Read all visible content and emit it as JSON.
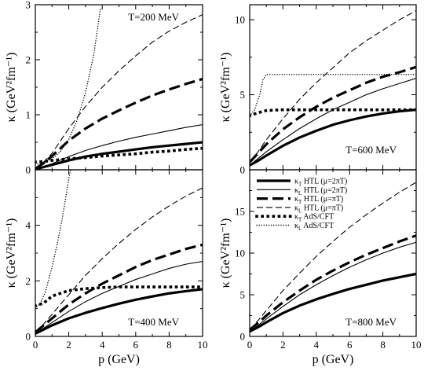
{
  "chart_data": [
    {
      "type": "line",
      "panel": "top-left",
      "annotation": "T=200 MeV",
      "xlabel": "",
      "ylabel": "κ (GeV²fm⁻¹)",
      "xlim": [
        0,
        10
      ],
      "ylim": [
        0,
        3
      ],
      "xticks": [
        0,
        2,
        4,
        6,
        8,
        10
      ],
      "xtick_labels": [],
      "yticks": [
        0,
        1,
        2,
        3
      ],
      "series": [
        {
          "style": "thick-solid",
          "x": [
            0,
            0.5,
            1,
            2,
            3,
            4,
            5,
            6,
            7,
            8,
            9,
            10
          ],
          "y": [
            0.01,
            0.05,
            0.09,
            0.17,
            0.24,
            0.29,
            0.33,
            0.37,
            0.41,
            0.44,
            0.47,
            0.5
          ]
        },
        {
          "style": "thin-solid",
          "x": [
            0,
            0.5,
            1,
            2,
            3,
            4,
            5,
            6,
            7,
            8,
            9,
            10
          ],
          "y": [
            0.01,
            0.06,
            0.11,
            0.24,
            0.35,
            0.44,
            0.52,
            0.59,
            0.65,
            0.71,
            0.77,
            0.82
          ]
        },
        {
          "style": "thick-dash",
          "x": [
            0,
            0.5,
            1,
            2,
            3,
            4,
            5,
            6,
            7,
            8,
            9,
            10
          ],
          "y": [
            0.02,
            0.12,
            0.25,
            0.53,
            0.75,
            0.93,
            1.08,
            1.22,
            1.35,
            1.46,
            1.56,
            1.65
          ]
        },
        {
          "style": "thin-dash",
          "x": [
            0,
            0.5,
            1,
            2,
            3,
            4,
            5,
            6,
            7,
            8,
            9,
            10
          ],
          "y": [
            0.02,
            0.14,
            0.3,
            0.75,
            1.15,
            1.5,
            1.8,
            2.07,
            2.32,
            2.52,
            2.68,
            2.82
          ]
        },
        {
          "style": "thick-dot",
          "x": [
            0,
            0.5,
            1,
            2,
            3,
            4,
            5,
            6,
            7,
            8,
            9,
            10
          ],
          "y": [
            0.14,
            0.15,
            0.17,
            0.2,
            0.22,
            0.25,
            0.27,
            0.29,
            0.32,
            0.34,
            0.37,
            0.39
          ]
        },
        {
          "style": "thin-dot",
          "x": [
            0,
            0.5,
            1,
            1.5,
            2,
            2.5,
            3,
            3.5,
            3.9
          ],
          "y": [
            0.1,
            0.13,
            0.2,
            0.33,
            0.55,
            0.9,
            1.4,
            2.1,
            2.95
          ]
        }
      ]
    },
    {
      "type": "line",
      "panel": "top-right",
      "annotation": "T=600 MeV",
      "xlabel": "",
      "ylabel": "κ (GeV²fm⁻¹)",
      "xlim": [
        0,
        10
      ],
      "ylim": [
        0,
        11
      ],
      "xticks": [
        0,
        2,
        4,
        6,
        8,
        10
      ],
      "xtick_labels": [],
      "yticks": [
        0,
        5,
        10
      ],
      "series": [
        {
          "style": "thick-solid",
          "x": [
            0,
            0.5,
            1,
            2,
            3,
            4,
            5,
            6,
            7,
            8,
            9,
            10
          ],
          "y": [
            0.3,
            0.6,
            0.95,
            1.6,
            2.15,
            2.6,
            3.0,
            3.3,
            3.55,
            3.75,
            3.9,
            4.0
          ]
        },
        {
          "style": "thin-solid",
          "x": [
            0,
            0.5,
            1,
            2,
            3,
            4,
            5,
            6,
            7,
            8,
            9,
            10
          ],
          "y": [
            0.3,
            0.75,
            1.2,
            2.0,
            2.75,
            3.4,
            4.0,
            4.5,
            5.0,
            5.4,
            5.75,
            6.1
          ]
        },
        {
          "style": "thick-dash",
          "x": [
            0,
            0.5,
            1,
            2,
            3,
            4,
            5,
            6,
            7,
            8,
            9,
            10
          ],
          "y": [
            0.5,
            1.1,
            1.7,
            2.7,
            3.5,
            4.2,
            4.8,
            5.3,
            5.8,
            6.2,
            6.5,
            6.85
          ]
        },
        {
          "style": "thin-dash",
          "x": [
            0,
            0.5,
            1,
            2,
            3,
            4,
            5,
            6,
            7,
            8,
            9,
            10
          ],
          "y": [
            0.5,
            1.2,
            2.0,
            3.4,
            4.7,
            5.8,
            6.8,
            7.8,
            8.6,
            9.3,
            10.0,
            10.6
          ]
        },
        {
          "style": "thick-dot",
          "x": [
            0,
            0.5,
            1,
            2,
            3,
            4,
            5,
            6,
            7,
            8,
            9,
            10
          ],
          "y": [
            3.6,
            3.8,
            3.95,
            4.0,
            4.0,
            4.0,
            4.0,
            4.0,
            4.0,
            4.0,
            4.0,
            4.0
          ]
        },
        {
          "style": "thin-dot",
          "x": [
            0,
            0.3,
            0.6,
            0.8,
            1.0,
            2,
            3,
            4,
            5,
            6,
            7,
            8,
            9,
            10
          ],
          "y": [
            3.6,
            4.0,
            5.0,
            6.0,
            6.35,
            6.35,
            6.35,
            6.35,
            6.35,
            6.35,
            6.35,
            6.35,
            6.35,
            6.35
          ]
        }
      ]
    },
    {
      "type": "line",
      "panel": "bottom-left",
      "annotation": "T=400 MeV",
      "xlabel": "p (GeV)",
      "ylabel": "κ (GeV²fm⁻¹)",
      "xlim": [
        0,
        10
      ],
      "ylim": [
        0,
        6
      ],
      "xticks": [
        0,
        2,
        4,
        6,
        8,
        10
      ],
      "xtick_labels": [
        "0",
        "2",
        "4",
        "6",
        "8",
        "10"
      ],
      "yticks": [
        0,
        2,
        4
      ],
      "series": [
        {
          "style": "thick-solid",
          "x": [
            0,
            0.5,
            1,
            2,
            3,
            4,
            5,
            6,
            7,
            8,
            9,
            10
          ],
          "y": [
            0.1,
            0.25,
            0.4,
            0.65,
            0.85,
            1.02,
            1.18,
            1.32,
            1.44,
            1.55,
            1.63,
            1.7
          ]
        },
        {
          "style": "thin-solid",
          "x": [
            0,
            0.5,
            1,
            2,
            3,
            4,
            5,
            6,
            7,
            8,
            9,
            10
          ],
          "y": [
            0.1,
            0.3,
            0.5,
            0.9,
            1.25,
            1.55,
            1.8,
            2.05,
            2.25,
            2.45,
            2.6,
            2.7
          ]
        },
        {
          "style": "thick-dash",
          "x": [
            0,
            0.5,
            1,
            2,
            3,
            4,
            5,
            6,
            7,
            8,
            9,
            10
          ],
          "y": [
            0.15,
            0.4,
            0.65,
            1.15,
            1.55,
            1.9,
            2.2,
            2.5,
            2.75,
            2.95,
            3.15,
            3.3
          ]
        },
        {
          "style": "thin-dash",
          "x": [
            0,
            0.5,
            1,
            2,
            3,
            4,
            5,
            6,
            7,
            8,
            9,
            10
          ],
          "y": [
            0.15,
            0.45,
            0.8,
            1.5,
            2.2,
            2.8,
            3.35,
            3.85,
            4.3,
            4.7,
            5.05,
            5.35
          ]
        },
        {
          "style": "thick-dot",
          "x": [
            0,
            0.5,
            1,
            2,
            3,
            4,
            5,
            6,
            7,
            8,
            9,
            10
          ],
          "y": [
            1.1,
            1.2,
            1.45,
            1.65,
            1.72,
            1.76,
            1.78,
            1.78,
            1.78,
            1.78,
            1.78,
            1.78
          ]
        },
        {
          "style": "thin-dot",
          "x": [
            0,
            0.3,
            0.6,
            1.0,
            1.3,
            1.6,
            1.9,
            2.1
          ],
          "y": [
            1.0,
            1.2,
            1.6,
            2.5,
            3.3,
            4.2,
            5.3,
            6.0
          ]
        }
      ]
    },
    {
      "type": "line",
      "panel": "bottom-right",
      "annotation": "T=800 MeV",
      "xlabel": "p (GeV)",
      "ylabel": "κ (GeV²fm⁻¹)",
      "xlim": [
        0,
        10
      ],
      "ylim": [
        0,
        20
      ],
      "xticks": [
        0,
        2,
        4,
        6,
        8,
        10
      ],
      "xtick_labels": [
        "0",
        "2",
        "4",
        "6",
        "8",
        "10"
      ],
      "yticks": [
        0,
        5,
        10,
        15
      ],
      "series": [
        {
          "style": "thick-solid",
          "x": [
            0,
            0.5,
            1,
            2,
            3,
            4,
            5,
            6,
            7,
            8,
            9,
            10
          ],
          "y": [
            0.6,
            1.1,
            1.7,
            2.8,
            3.7,
            4.45,
            5.1,
            5.7,
            6.2,
            6.7,
            7.1,
            7.5
          ]
        },
        {
          "style": "thin-solid",
          "x": [
            0,
            0.5,
            1,
            2,
            3,
            4,
            5,
            6,
            7,
            8,
            9,
            10
          ],
          "y": [
            0.6,
            1.3,
            2.1,
            3.6,
            5.0,
            6.2,
            7.3,
            8.3,
            9.2,
            10.0,
            10.7,
            11.3
          ]
        },
        {
          "style": "thick-dash",
          "x": [
            0,
            0.5,
            1,
            2,
            3,
            4,
            5,
            6,
            7,
            8,
            9,
            10
          ],
          "y": [
            0.8,
            1.6,
            2.5,
            4.1,
            5.5,
            6.8,
            7.9,
            8.9,
            9.8,
            10.6,
            11.4,
            12.1
          ]
        },
        {
          "style": "thin-dash",
          "x": [
            0,
            0.5,
            1,
            2,
            3,
            4,
            5,
            6,
            7,
            8,
            9,
            10
          ],
          "y": [
            0.8,
            1.9,
            3.1,
            5.5,
            7.6,
            9.6,
            11.4,
            13.1,
            14.6,
            16.0,
            17.3,
            18.5
          ]
        }
      ],
      "legend": {
        "placement": "top",
        "entries": [
          {
            "style": "thick-solid",
            "sym": "κ",
            "sub": "T",
            "text": " HTL (μ=2πT)"
          },
          {
            "style": "thin-solid",
            "sym": "κ",
            "sub": "L",
            "text": " HTL (μ=2πT)"
          },
          {
            "style": "thick-dash",
            "sym": "κ",
            "sub": "T",
            "text": " HTL (μ=πT)"
          },
          {
            "style": "thin-dash",
            "sym": "κ",
            "sub": "L",
            "text": " HTL (μ=πT)"
          },
          {
            "style": "thick-dot",
            "sym": "κ",
            "sub": "T",
            "text": " AdS/CFT"
          },
          {
            "style": "thin-dot",
            "sym": "κ",
            "sub": "L",
            "text": " AdS/CFT"
          }
        ]
      }
    }
  ]
}
